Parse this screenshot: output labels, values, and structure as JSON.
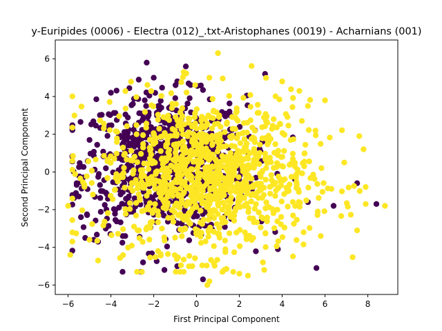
{
  "chart_data": {
    "type": "scatter",
    "title": "y-Euripides (0006) - Electra (012)_.txt-Aristophanes (0019) - Acharnians (001)",
    "xlabel": "First Principal Component",
    "ylabel": "Second Principal Component",
    "xlim": [
      -6.6,
      9.4
    ],
    "ylim": [
      -6.5,
      7.0
    ],
    "xticks": [
      -6,
      -4,
      -2,
      0,
      2,
      4,
      6,
      8
    ],
    "yticks": [
      -6,
      -4,
      -2,
      0,
      2,
      4,
      6
    ],
    "grid": false,
    "legend": "none",
    "series": [
      {
        "color": "#440154",
        "n_points": 800,
        "x_center": -1.5,
        "y_center": 0.4,
        "x_spread": 1.9,
        "y_spread": 1.8,
        "points": [
          [
            -4.0,
            4.2
          ],
          [
            -2.0,
            5.0
          ],
          [
            -0.5,
            5.6
          ],
          [
            3.2,
            5.2
          ],
          [
            -5.6,
            -0.6
          ],
          [
            -5.5,
            -1.3
          ],
          [
            -5.0,
            1.7
          ],
          [
            -5.4,
            -2.4
          ],
          [
            -5.2,
            -3.5
          ],
          [
            -4.8,
            -3.6
          ],
          [
            -4.6,
            -3.7
          ],
          [
            -2.5,
            -4.8
          ],
          [
            -1.5,
            -5.2
          ],
          [
            -0.9,
            -5.0
          ],
          [
            0.3,
            -5.7
          ],
          [
            3.8,
            -4.1
          ],
          [
            5.6,
            -5.1
          ],
          [
            6.4,
            -1.8
          ],
          [
            7.5,
            -0.6
          ],
          [
            8.4,
            -1.7
          ],
          [
            -1.1,
            1.1
          ],
          [
            0.8,
            -1.2
          ],
          [
            1.9,
            0.2
          ],
          [
            2.6,
            -0.9
          ],
          [
            4.6,
            -0.4
          ],
          [
            5.2,
            -1.6
          ]
        ]
      },
      {
        "color": "#fde725",
        "n_points": 1100,
        "x_center": 0.5,
        "y_center": -0.2,
        "x_spread": 2.4,
        "y_spread": 2.0,
        "points": [
          [
            -6.0,
            -1.8
          ],
          [
            -5.9,
            -4.4
          ],
          [
            -5.0,
            -3.6
          ],
          [
            -4.6,
            -4.7
          ],
          [
            1.0,
            6.3
          ],
          [
            -0.6,
            5.3
          ],
          [
            0.6,
            5.0
          ],
          [
            4.0,
            4.8
          ],
          [
            4.8,
            4.3
          ],
          [
            5.2,
            3.5
          ],
          [
            6.0,
            3.8
          ],
          [
            6.9,
            0.5
          ],
          [
            7.6,
            1.9
          ],
          [
            7.8,
            1.2
          ],
          [
            7.9,
            -0.8
          ],
          [
            8.8,
            -1.8
          ],
          [
            7.9,
            -1.7
          ],
          [
            7.5,
            -3.1
          ],
          [
            5.0,
            -3.2
          ],
          [
            5.8,
            -3.4
          ],
          [
            0.6,
            -5.8
          ],
          [
            0.5,
            -6.0
          ],
          [
            1.3,
            -5.2
          ],
          [
            2.0,
            -5.4
          ],
          [
            2.4,
            -5.5
          ],
          [
            3.1,
            -4.8
          ],
          [
            -0.2,
            -5.0
          ],
          [
            -1.8,
            -4.2
          ],
          [
            6.3,
            -0.9
          ],
          [
            3.6,
            2.8
          ],
          [
            -0.8,
            0.0
          ],
          [
            2.5,
            1.0
          ],
          [
            -2.8,
            2.0
          ],
          [
            1.2,
            -2.0
          ]
        ]
      }
    ]
  }
}
